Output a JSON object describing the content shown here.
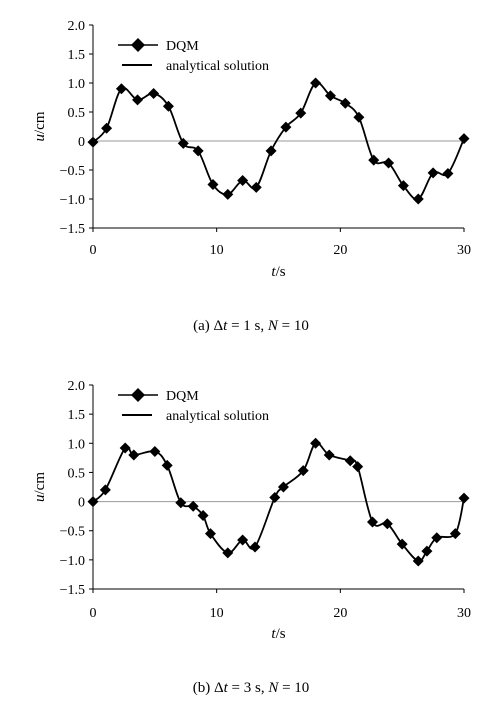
{
  "chart_data": [
    {
      "type": "line",
      "caption": "(a) Δt = 1 s, N = 10",
      "xlabel": "t / s",
      "ylabel": "u / cm",
      "xlim": [
        0,
        30
      ],
      "ylim": [
        -1.5,
        2.0
      ],
      "x_ticks": [
        "0",
        "10",
        "20",
        "30"
      ],
      "y_ticks": [
        "2.0",
        "1.5",
        "1.0",
        "0.5",
        "0",
        "−0.5",
        "−1.0",
        "−1.5"
      ],
      "zero_line": true,
      "legend_position": "top-left",
      "series": [
        {
          "name": "DQM",
          "style": "diamond-markers",
          "x": [
            0,
            1.1,
            2.3,
            3.6,
            4.9,
            6.1,
            7.3,
            8.5,
            9.7,
            10.9,
            12.1,
            13.2,
            14.4,
            15.6,
            16.8,
            18.0,
            19.2,
            20.4,
            21.5,
            22.7,
            23.9,
            25.1,
            26.3,
            27.5,
            28.7,
            30.0
          ],
          "y": [
            -0.02,
            0.22,
            0.9,
            0.71,
            0.82,
            0.6,
            -0.04,
            -0.17,
            -0.75,
            -0.92,
            -0.68,
            -0.8,
            -0.17,
            0.24,
            0.48,
            1.0,
            0.78,
            0.65,
            0.41,
            -0.33,
            -0.38,
            -0.77,
            -1.0,
            -0.55,
            -0.56,
            0.04
          ]
        },
        {
          "name": "analytical solution",
          "style": "solid-line",
          "x": [
            0,
            1.1,
            2.3,
            3.6,
            4.9,
            6.1,
            7.3,
            8.5,
            9.7,
            10.9,
            12.1,
            13.2,
            14.4,
            15.6,
            16.8,
            18.0,
            19.2,
            20.4,
            21.5,
            22.7,
            23.9,
            25.1,
            26.3,
            27.5,
            28.7,
            30.0
          ],
          "y": [
            -0.02,
            0.22,
            0.9,
            0.71,
            0.82,
            0.6,
            -0.04,
            -0.17,
            -0.75,
            -0.92,
            -0.68,
            -0.8,
            -0.17,
            0.24,
            0.48,
            1.0,
            0.78,
            0.65,
            0.41,
            -0.33,
            -0.38,
            -0.77,
            -1.0,
            -0.55,
            -0.56,
            0.04
          ]
        }
      ]
    },
    {
      "type": "line",
      "caption": "(b) Δt = 3 s, N = 10",
      "xlabel": "t / s",
      "ylabel": "u / cm",
      "xlim": [
        0,
        30
      ],
      "ylim": [
        -1.5,
        2.0
      ],
      "x_ticks": [
        "0",
        "10",
        "20",
        "30"
      ],
      "y_ticks": [
        "2.0",
        "1.5",
        "1.0",
        "0.5",
        "0",
        "−0.5",
        "−1.0",
        "−1.5"
      ],
      "zero_line": true,
      "legend_position": "top-left",
      "series": [
        {
          "name": "DQM",
          "style": "diamond-markers",
          "x": [
            0,
            1.0,
            2.6,
            3.3,
            5.0,
            6.0,
            7.1,
            8.1,
            8.9,
            9.5,
            10.9,
            12.1,
            13.1,
            14.7,
            15.4,
            17.0,
            18.0,
            19.1,
            20.8,
            21.4,
            22.6,
            23.8,
            25.0,
            26.3,
            27.0,
            27.8,
            29.3,
            30.0
          ],
          "y": [
            0.0,
            0.2,
            0.92,
            0.8,
            0.86,
            0.62,
            -0.02,
            -0.08,
            -0.24,
            -0.55,
            -0.88,
            -0.66,
            -0.78,
            0.07,
            0.25,
            0.53,
            1.0,
            0.8,
            0.7,
            0.6,
            -0.35,
            -0.38,
            -0.73,
            -1.02,
            -0.85,
            -0.62,
            -0.55,
            0.06
          ]
        },
        {
          "name": "analytical solution",
          "style": "solid-line",
          "x": [
            0,
            1.0,
            2.6,
            3.3,
            5.0,
            6.0,
            7.1,
            8.1,
            8.9,
            9.5,
            10.9,
            12.1,
            13.1,
            14.7,
            15.4,
            17.0,
            18.0,
            19.1,
            20.8,
            21.4,
            22.6,
            23.8,
            25.0,
            26.3,
            27.0,
            27.8,
            29.3,
            30.0
          ],
          "y": [
            0.0,
            0.2,
            0.92,
            0.8,
            0.86,
            0.62,
            -0.02,
            -0.08,
            -0.24,
            -0.55,
            -0.88,
            -0.66,
            -0.78,
            0.07,
            0.25,
            0.53,
            1.0,
            0.8,
            0.7,
            0.6,
            -0.35,
            -0.38,
            -0.73,
            -1.02,
            -0.85,
            -0.62,
            -0.55,
            0.06
          ]
        }
      ]
    }
  ]
}
